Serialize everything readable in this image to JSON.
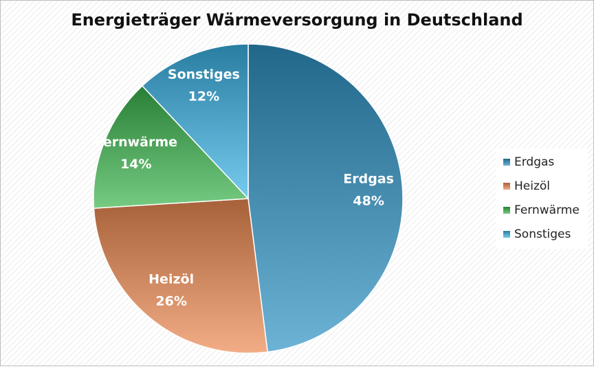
{
  "chart_data": {
    "type": "pie",
    "title": "Energieträger Wärmeversorgung in Deutschland",
    "categories": [
      "Erdgas",
      "Heizöl",
      "Fernwärme",
      "Sonstiges"
    ],
    "values": [
      48,
      26,
      14,
      12
    ],
    "value_labels": [
      "48%",
      "26%",
      "14%",
      "12%"
    ],
    "colors": [
      "#2f93c4",
      "#ee8a52",
      "#3bb54c",
      "#3ab3e6"
    ],
    "legend": "right"
  }
}
